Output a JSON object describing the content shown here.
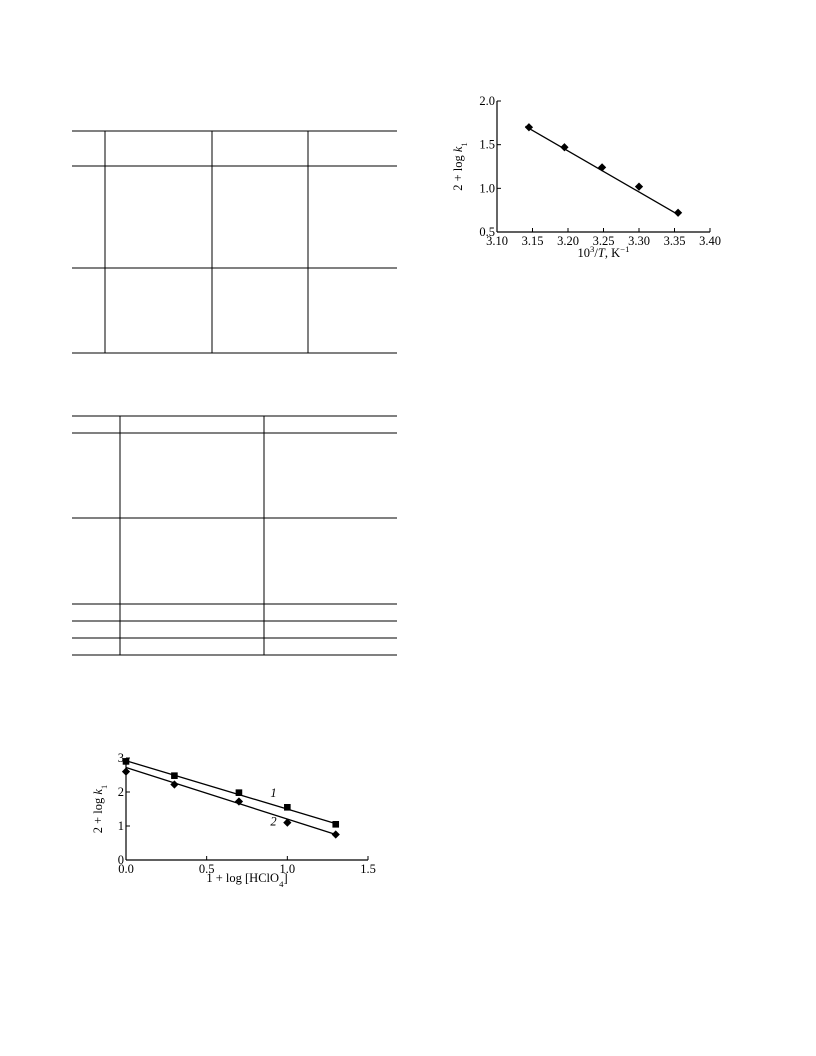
{
  "chart_data": [
    {
      "type": "scatter",
      "xlabel": "10³/T, K⁻¹",
      "ylabel": "2 + log k₁",
      "xlim": [
        3.1,
        3.4
      ],
      "ylim": [
        0.5,
        2.0
      ],
      "x_ticks": [
        "3.10",
        "3.15",
        "3.20",
        "3.25",
        "3.30",
        "3.35",
        "3.40"
      ],
      "y_ticks": [
        "0.5",
        "1.0",
        "1.5",
        "2.0"
      ],
      "series": [
        {
          "marker": "diamond",
          "x": [
            3.145,
            3.195,
            3.248,
            3.3,
            3.355
          ],
          "y": [
            1.7,
            1.47,
            1.24,
            1.02,
            0.72
          ],
          "fit": {
            "x": [
              3.14,
              3.355
            ],
            "y": [
              1.71,
              0.7
            ]
          }
        }
      ]
    },
    {
      "type": "scatter",
      "xlabel": "1 + log [HClO₄]",
      "ylabel": "2 + log k₁",
      "xlim": [
        0.0,
        1.5
      ],
      "ylim": [
        0,
        3
      ],
      "x_ticks": [
        "0.0",
        "0.5",
        "1.0",
        "1.5"
      ],
      "y_ticks": [
        "0",
        "1",
        "2",
        "3"
      ],
      "series": [
        {
          "name": "1",
          "marker": "square",
          "x": [
            0.0,
            0.3,
            0.7,
            1.0,
            1.3
          ],
          "y": [
            2.9,
            2.48,
            1.98,
            1.55,
            1.05
          ],
          "fit": {
            "x": [
              0.0,
              1.3
            ],
            "y": [
              2.92,
              1.07
            ]
          }
        },
        {
          "name": "2",
          "marker": "diamond",
          "x": [
            0.0,
            0.3,
            0.7,
            1.0,
            1.3
          ],
          "y": [
            2.6,
            2.22,
            1.72,
            1.1,
            0.75
          ],
          "fit": {
            "x": [
              0.0,
              1.3
            ],
            "y": [
              2.72,
              0.75
            ]
          }
        }
      ]
    }
  ]
}
